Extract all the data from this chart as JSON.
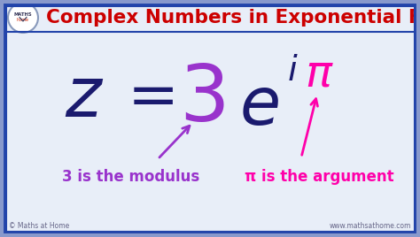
{
  "bg_color": "#e8eef8",
  "inner_bg": "#f0f4fc",
  "border_color": "#2244aa",
  "title": "Complex Numbers in Exponential Form",
  "title_color": "#cc0000",
  "title_fontsize": 15.5,
  "dark_blue": "#1a1a6e",
  "purple": "#9933cc",
  "magenta": "#ff00aa",
  "label_modulus": "3 is the modulus",
  "label_argument": "π is the argument",
  "footer_left": "© Maths at Home",
  "footer_right": "www.mathsathome.com",
  "footer_color": "#666688",
  "footer_fontsize": 5.5
}
